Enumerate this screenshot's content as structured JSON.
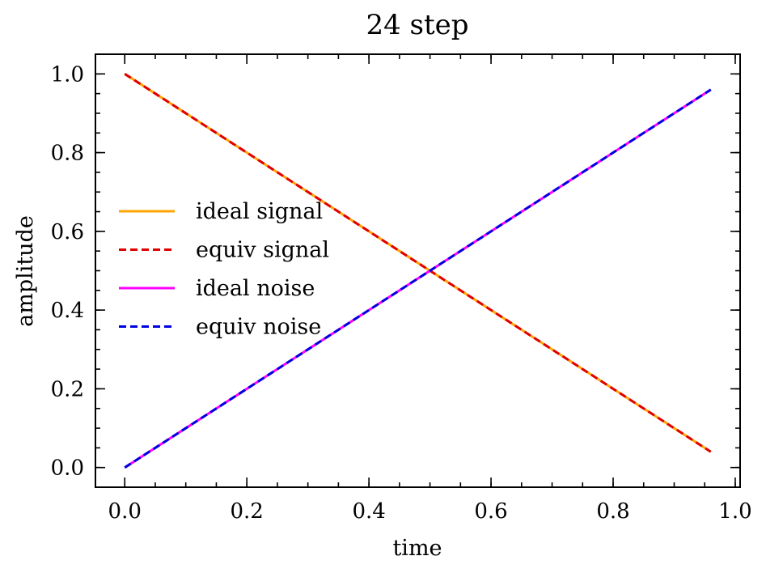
{
  "chart_data": {
    "type": "line",
    "title": "24 step",
    "xlabel": "time",
    "ylabel": "amplitude",
    "xlim": [
      -0.048,
      1.008
    ],
    "ylim": [
      -0.05,
      1.05
    ],
    "xticks": [
      0.0,
      0.2,
      0.4,
      0.6,
      0.8,
      1.0
    ],
    "xtick_labels": [
      "0.0",
      "0.2",
      "0.4",
      "0.6",
      "0.8",
      "1.0"
    ],
    "yticks": [
      0.0,
      0.2,
      0.4,
      0.6,
      0.8,
      1.0
    ],
    "ytick_labels": [
      "0.0",
      "0.2",
      "0.4",
      "0.6",
      "0.8",
      "1.0"
    ],
    "minor_xtick_step": 0.05,
    "minor_ytick_step": 0.05,
    "grid": false,
    "legend_position": "center-left",
    "series": [
      {
        "name": "ideal signal",
        "color": "#ffa500",
        "dash": "solid",
        "x": [
          0.0,
          0.96
        ],
        "y": [
          1.0,
          0.04
        ]
      },
      {
        "name": "equiv signal",
        "color": "#e00000",
        "dash": "dashed",
        "x": [
          0.0,
          0.96
        ],
        "y": [
          1.0,
          0.04
        ]
      },
      {
        "name": "ideal noise",
        "color": "#ff00ff",
        "dash": "solid",
        "x": [
          0.0,
          0.96
        ],
        "y": [
          0.0,
          0.96
        ]
      },
      {
        "name": "equiv noise",
        "color": "#0000e0",
        "dash": "dashed",
        "x": [
          0.0,
          0.96
        ],
        "y": [
          0.0,
          0.96
        ]
      }
    ]
  }
}
